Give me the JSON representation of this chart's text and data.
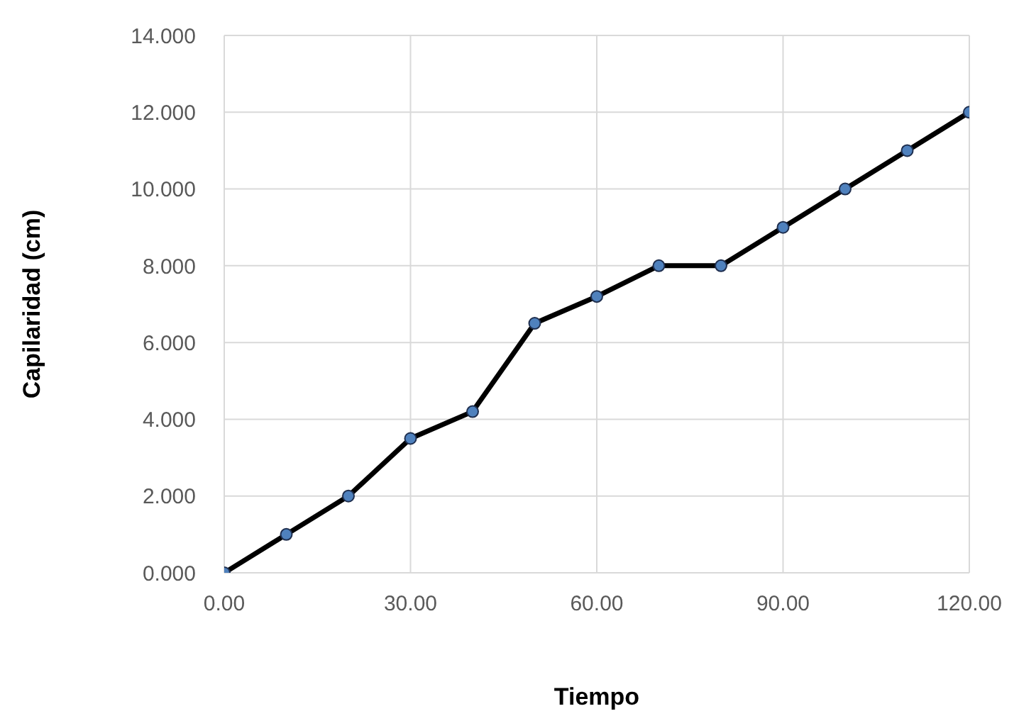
{
  "chart_data": {
    "type": "line",
    "xlabel": "Tiempo",
    "ylabel": "Capilaridad (cm)",
    "x": [
      0,
      10,
      20,
      30,
      40,
      50,
      60,
      70,
      80,
      90,
      100,
      110,
      120
    ],
    "series": [
      {
        "color": "#000000",
        "values": [
          0,
          1,
          2,
          3.5,
          4.2,
          6.5,
          7.2,
          8,
          8,
          9,
          10,
          11,
          12
        ]
      }
    ],
    "xlim": [
      0,
      120
    ],
    "xticks": [
      {
        "value": 0,
        "label": "0.00"
      },
      {
        "value": 30,
        "label": "30.00"
      },
      {
        "value": 60,
        "label": "60.00"
      },
      {
        "value": 90,
        "label": "90.00"
      },
      {
        "value": 120,
        "label": "120.00"
      }
    ],
    "ylim": [
      0,
      14
    ],
    "yticks": [
      {
        "value": 0,
        "label": "0.000"
      },
      {
        "value": 2,
        "label": "2.000"
      },
      {
        "value": 4,
        "label": "4.000"
      },
      {
        "value": 6,
        "label": "6.000"
      },
      {
        "value": 8,
        "label": "8.000"
      },
      {
        "value": 10,
        "label": "10.000"
      },
      {
        "value": 12,
        "label": "12.000"
      },
      {
        "value": 14,
        "label": "14.000"
      }
    ],
    "grid": true,
    "marker": "circle",
    "line_style": "solid"
  }
}
